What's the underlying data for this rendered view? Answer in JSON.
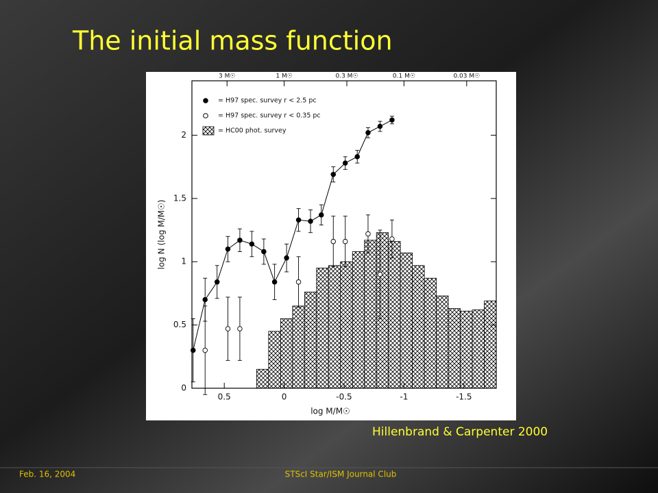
{
  "slide": {
    "title": "The initial mass function",
    "caption": "Hillenbrand & Carpenter 2000",
    "footer_left": "Feb. 16, 2004",
    "footer_center": "STScI Star/ISM Journal Club"
  },
  "chart_data": {
    "type": "histogram",
    "x_label": "log M/M☉",
    "y_label": "log N (log M/M☉)",
    "xlim": [
      0.77,
      -1.77
    ],
    "ylim": [
      0,
      2.43
    ],
    "xticks": [
      0.5,
      0,
      -0.5,
      -1,
      -1.5
    ],
    "yticks": [
      0,
      0.5,
      1,
      1.5,
      2
    ],
    "top_xticks": [
      {
        "value": 0.477,
        "label": "3 M☉"
      },
      {
        "value": 0,
        "label": "1 M☉"
      },
      {
        "value": -0.523,
        "label": "0.3 M☉"
      },
      {
        "value": -1,
        "label": "0.1 M☉"
      },
      {
        "value": -1.523,
        "label": "0.03 M☉"
      }
    ],
    "histogram": {
      "name": "= HC00 phot. survey",
      "color": "#000000",
      "bins": [
        0.23,
        0.13,
        0.03,
        -0.07,
        -0.17,
        -0.27,
        -0.37,
        -0.47,
        -0.57,
        -0.67,
        -0.77,
        -0.87,
        -0.97,
        -1.07,
        -1.17,
        -1.27,
        -1.37,
        -1.47,
        -1.57,
        -1.67,
        -1.77
      ],
      "counts": [
        0.15,
        0.45,
        0.55,
        0.65,
        0.76,
        0.95,
        0.97,
        1.0,
        1.08,
        1.17,
        1.23,
        1.16,
        1.07,
        0.97,
        0.87,
        0.73,
        0.63,
        0.61,
        0.62,
        0.69
      ]
    },
    "series": [
      {
        "name": "= H97 spec. survey r < 2.5 pc",
        "color": "#000000",
        "marker": "filled",
        "line": true,
        "x": [
          0.76,
          0.66,
          0.56,
          0.47,
          0.37,
          0.27,
          0.17,
          0.08,
          -0.02,
          -0.12,
          -0.22,
          -0.31,
          -0.41,
          -0.51,
          -0.61,
          -0.7,
          -0.8,
          -0.9
        ],
        "values": [
          0.3,
          0.7,
          0.84,
          1.1,
          1.17,
          1.14,
          1.08,
          0.84,
          1.03,
          1.33,
          1.32,
          1.37,
          1.69,
          1.78,
          1.83,
          2.02,
          2.07,
          2.12
        ],
        "errors": [
          0.25,
          0.17,
          0.13,
          0.1,
          0.09,
          0.1,
          0.1,
          0.14,
          0.11,
          0.09,
          0.09,
          0.08,
          0.06,
          0.05,
          0.05,
          0.04,
          0.04,
          0.03
        ]
      },
      {
        "name": "= H97 spec. survey r < 0.35 pc",
        "color": "#000000",
        "marker": "open",
        "line": false,
        "x": [
          0.66,
          0.47,
          0.37,
          -0.12,
          -0.41,
          -0.51,
          -0.7,
          -0.8,
          -0.9
        ],
        "values": [
          0.3,
          0.47,
          0.47,
          0.84,
          1.16,
          1.16,
          1.22,
          0.9,
          1.18
        ],
        "errors": [
          0.35,
          0.25,
          0.25,
          0.2,
          0.2,
          0.2,
          0.15,
          0.35,
          0.15
        ]
      }
    ]
  }
}
